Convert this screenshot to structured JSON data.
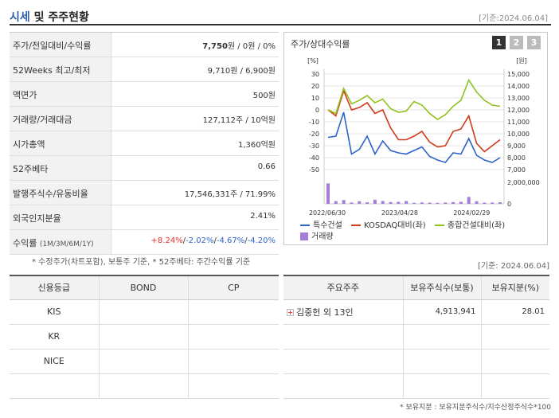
{
  "header": {
    "title_prefix": "시세",
    "title_suffix": " 및 주주현황",
    "asof": "[기준:2024.06.04]"
  },
  "quote_rows": [
    {
      "label": "주가/전일대비/수익률",
      "value_main": "7,750",
      "value_rest": "원 / 0원 / 0%"
    },
    {
      "label": "52Weeks 최고/최저",
      "value": "9,710원 / 6,900원"
    },
    {
      "label": "액면가",
      "value": "500원"
    },
    {
      "label": "거래량/거래대금",
      "value": "127,112주 / 10억원"
    },
    {
      "label": "시가총액",
      "value": "1,360억원"
    },
    {
      "label": "52주베타",
      "value": "0.66"
    },
    {
      "label": "발행주식수/유동비율",
      "value": "17,546,331주 / 71.99%"
    },
    {
      "label": "외국인지분율",
      "value": "2.41%"
    }
  ],
  "returns": {
    "label": "수익률",
    "periods": "(1M/3M/6M/1Y)",
    "r1m": "+8.24%",
    "r3m": "-2.02%",
    "r6m": "-4.67%",
    "r1y": "-4.20%"
  },
  "note_left": "* 수정주가(차트포함), 보통주 기준, * 52주베타: 주간수익률 기준",
  "note_right": "[기준: 2024.06.04]",
  "chart": {
    "title": "주가/상대수익률",
    "tabs": [
      "1",
      "2",
      "3"
    ],
    "left_unit": "[%]",
    "right_unit": "[원]",
    "left_ticks": [
      "30",
      "20",
      "10",
      "0",
      "-10",
      "-20",
      "-30",
      "-40",
      "-50"
    ],
    "right_ticks": [
      "15,000",
      "14,000",
      "13,000",
      "12,000",
      "11,000",
      "10,000",
      "9,000",
      "8,000",
      "7,000"
    ],
    "vol_ticks": [
      "2,000,000",
      "0"
    ],
    "x_labels": [
      "2022/06/30",
      "2023/04/28",
      "2024/02/29"
    ],
    "legend": {
      "s1": "특수건설",
      "s2": "KOSDAQ대비(좌)",
      "s3": "종합건설대비(좌)",
      "vol": "거래량"
    }
  },
  "chart_data": {
    "type": "line",
    "title": "주가/상대수익률",
    "ylabel_left": "%",
    "ylabel_right": "원",
    "ylim_left": [
      -50,
      30
    ],
    "ylim_right": [
      7000,
      15000
    ],
    "x_ticks": [
      "2022/06/30",
      "2023/04/28",
      "2024/02/29"
    ],
    "series": [
      {
        "name": "특수건설",
        "axis": "right",
        "color": "#2d63c8",
        "values": [
          9700,
          9800,
          11800,
          8300,
          8700,
          9800,
          8300,
          9400,
          8600,
          8400,
          8300,
          8600,
          8900,
          8100,
          7800,
          7600,
          8400,
          8300,
          9600,
          8200,
          7800,
          7600,
          8000
        ]
      },
      {
        "name": "KOSDAQ대비(좌)",
        "axis": "left",
        "color": "#d03a1a",
        "values": [
          0,
          -5,
          16,
          0,
          2,
          6,
          -3,
          0,
          -15,
          -25,
          -25,
          -22,
          -18,
          -27,
          -31,
          -30,
          -18,
          -16,
          -5,
          -28,
          -35,
          -30,
          -25
        ]
      },
      {
        "name": "종합건설대비(좌)",
        "axis": "left",
        "color": "#8fc21f",
        "values": [
          0,
          -3,
          18,
          5,
          8,
          12,
          6,
          9,
          1,
          -2,
          -1,
          7,
          4,
          -3,
          -8,
          -4,
          3,
          8,
          25,
          15,
          8,
          4,
          3
        ]
      },
      {
        "name": "거래량",
        "axis": "volume",
        "color": "#a57dd9",
        "values": [
          1900000,
          250000,
          350000,
          120000,
          240000,
          140000,
          380000,
          260000,
          160000,
          180000,
          260000,
          90000,
          130000,
          110000,
          90000,
          120000,
          160000,
          190000,
          640000,
          240000,
          110000,
          120000,
          140000
        ]
      }
    ]
  },
  "credit": {
    "headers": [
      "신용등급",
      "BOND",
      "CP"
    ],
    "rows": [
      [
        "KIS",
        "",
        ""
      ],
      [
        "KR",
        "",
        ""
      ],
      [
        "NICE",
        "",
        ""
      ],
      [
        "",
        "",
        ""
      ]
    ]
  },
  "holders": {
    "headers": [
      "주요주주",
      "보유주식수(보통)",
      "보유지분(%)"
    ],
    "rows": [
      {
        "name": "김중헌 외 13인",
        "shares": "4,913,941",
        "pct": "28.01"
      },
      {
        "name": "",
        "shares": "",
        "pct": ""
      },
      {
        "name": "",
        "shares": "",
        "pct": ""
      },
      {
        "name": "",
        "shares": "",
        "pct": ""
      }
    ]
  },
  "note_bottom": "* 보유지분 : 보유지분주식수/지수산정주식수*100"
}
